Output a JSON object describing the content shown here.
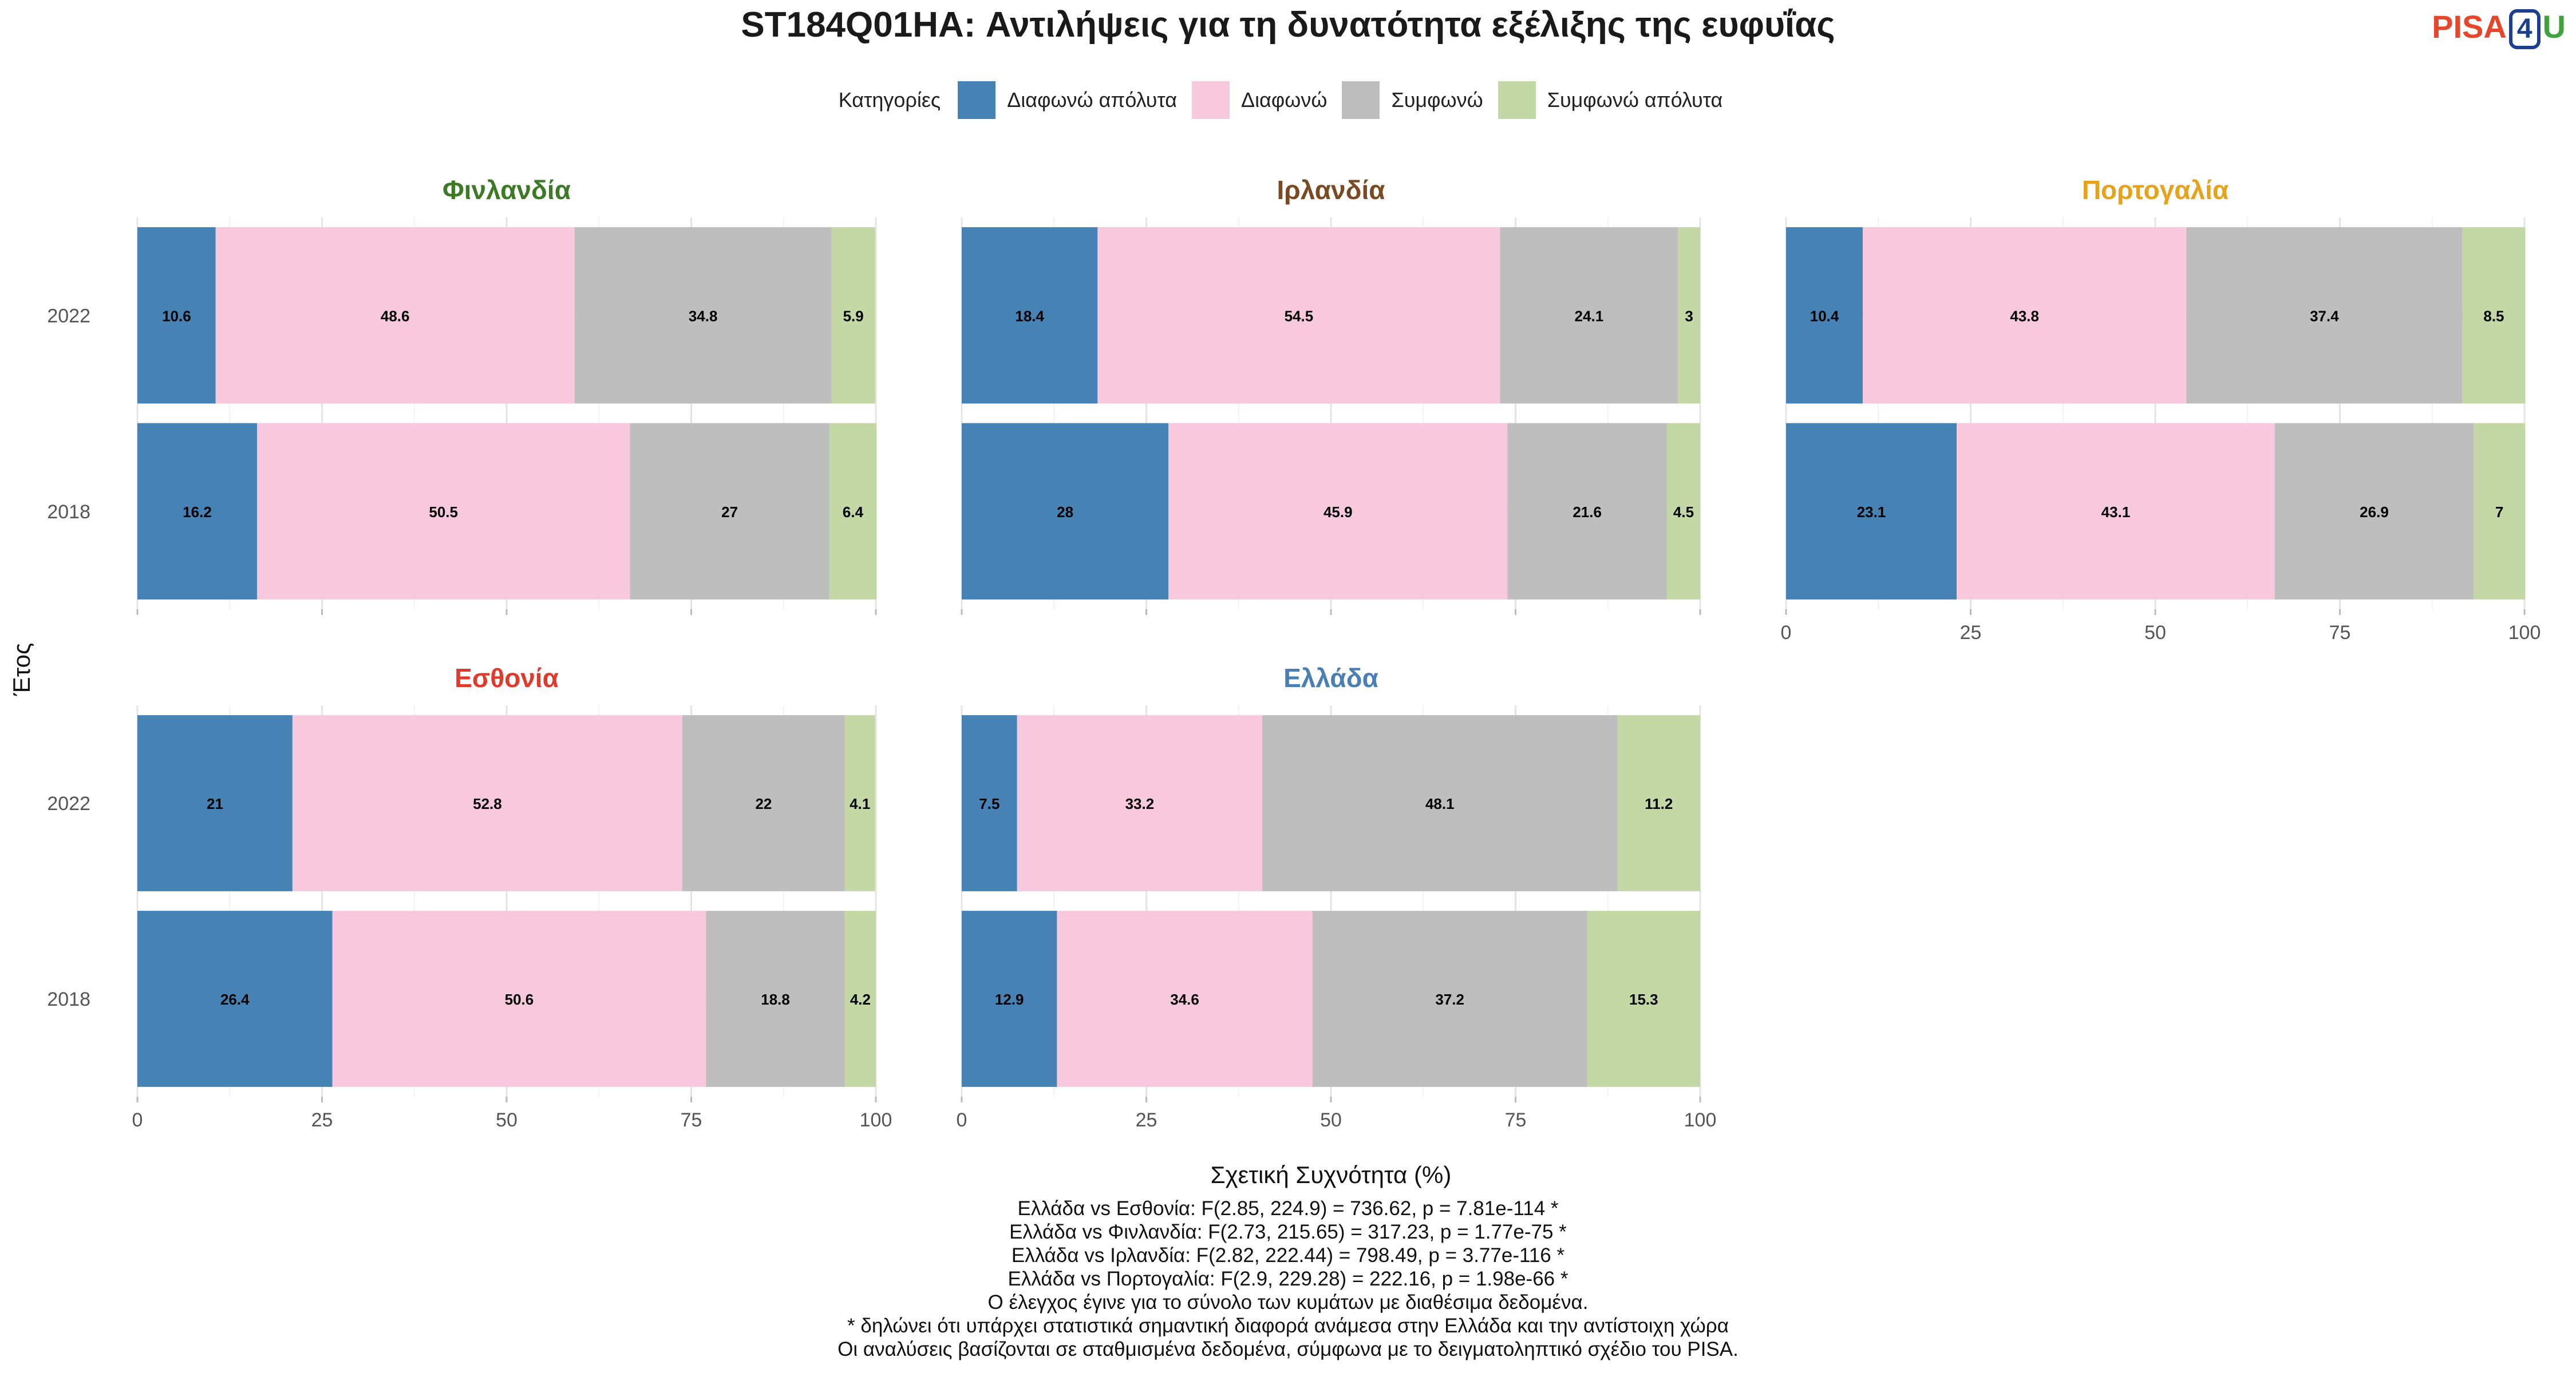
{
  "title": "ST184Q01HA: Αντιλήψεις για τη δυνατότητα εξέλιξης της ευφυΐας",
  "logo": {
    "left": "PISA",
    "middle": "4",
    "right": "U"
  },
  "footnotes": [
    "Ελλάδα vs Εσθονία: F(2.85, 224.9) = 736.62, p = 7.81e-114 *",
    "Ελλάδα vs Φινλανδία: F(2.73, 215.65) = 317.23, p = 1.77e-75 *",
    "Ελλάδα vs Ιρλανδία: F(2.82, 222.44) = 798.49, p = 3.77e-116 *",
    "Ελλάδα vs Πορτογαλία: F(2.9, 229.28) = 222.16, p = 1.98e-66 *",
    "Ο έλεγχος έγινε για το σύνολο των κυμάτων με διαθέσιμα δεδομένα.",
    "* δηλώνει ότι υπάρχει στατιστικά σημαντική διαφορά ανάμεσα στην Ελλάδα και την αντίστοιχη χώρα",
    "Οι αναλύσεις βασίζονται σε σταθμισμένα δεδομένα, σύμφωνα με το δειγματοληπτικό σχέδιο του PISA."
  ],
  "chart_data": {
    "type": "bar",
    "orientation": "horizontal-stacked",
    "xlabel": "Σχετική Συχνότητα (%)",
    "ylabel": "Έτος",
    "xlim": [
      0,
      100
    ],
    "xticks": [
      0,
      25,
      50,
      75,
      100
    ],
    "legend_title": "Κατηγορίες",
    "legend_position": "top",
    "grid": true,
    "categories": [
      "Διαφωνώ απόλυτα",
      "Διαφωνώ",
      "Συμφωνώ",
      "Συμφωνώ απόλυτα"
    ],
    "colors": [
      "#4682b4",
      "#f8c8dc",
      "#bebebe",
      "#c3d8a5"
    ],
    "panels": [
      {
        "country": "Φινλανδία",
        "title_color": "#3d7a26",
        "years": [
          {
            "year": "2022",
            "values": [
              10.6,
              48.6,
              34.8,
              5.9
            ]
          },
          {
            "year": "2018",
            "values": [
              16.2,
              50.5,
              27,
              6.4
            ]
          }
        ]
      },
      {
        "country": "Ιρλανδία",
        "title_color": "#7a4a23",
        "years": [
          {
            "year": "2022",
            "values": [
              18.4,
              54.5,
              24.1,
              3
            ]
          },
          {
            "year": "2018",
            "values": [
              28,
              45.9,
              21.6,
              4.5
            ]
          }
        ]
      },
      {
        "country": "Πορτογαλία",
        "title_color": "#e6a21a",
        "years": [
          {
            "year": "2022",
            "values": [
              10.4,
              43.8,
              37.4,
              8.5
            ]
          },
          {
            "year": "2018",
            "values": [
              23.1,
              43.1,
              26.9,
              7
            ]
          }
        ]
      },
      {
        "country": "Εσθονία",
        "title_color": "#e03a2c",
        "years": [
          {
            "year": "2022",
            "values": [
              21,
              52.8,
              22,
              4.1
            ]
          },
          {
            "year": "2018",
            "values": [
              26.4,
              50.6,
              18.8,
              4.2
            ]
          }
        ]
      },
      {
        "country": "Ελλάδα",
        "title_color": "#4a7fb5",
        "years": [
          {
            "year": "2022",
            "values": [
              7.5,
              33.2,
              48.1,
              11.2
            ]
          },
          {
            "year": "2018",
            "values": [
              12.9,
              34.6,
              37.2,
              15.3
            ]
          }
        ]
      }
    ]
  }
}
